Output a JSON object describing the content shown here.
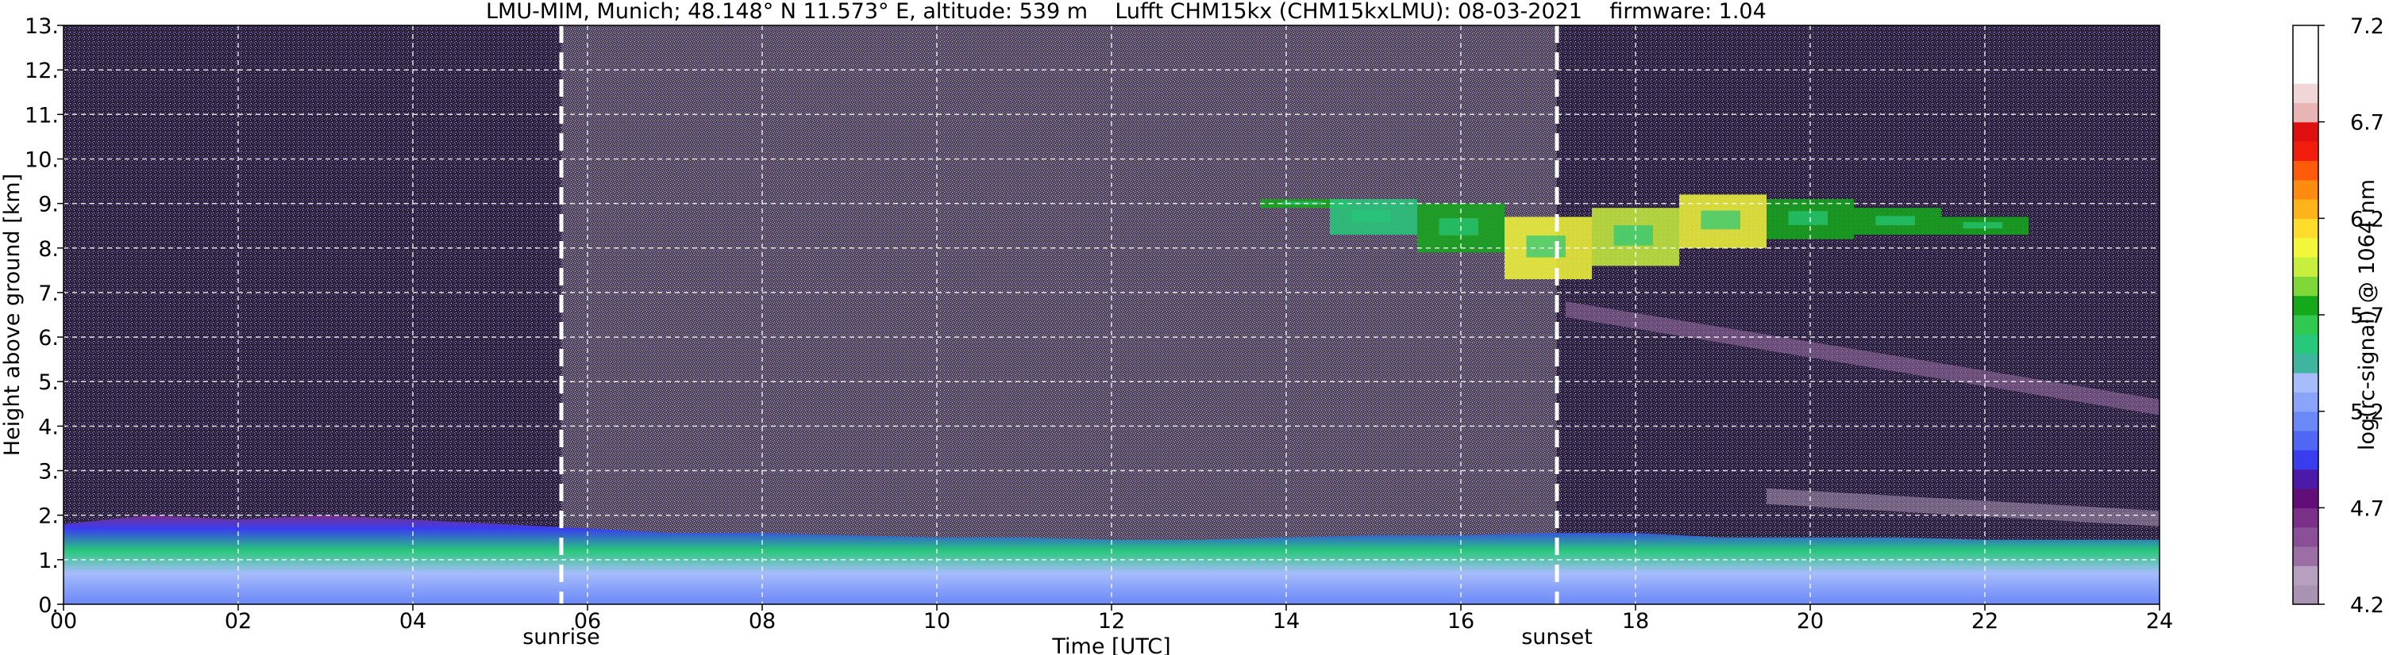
{
  "title": "LMU-MIM, Munich; 48.148° N 11.573° E, altitude: 539 m    Lufft CHM15kx (CHM15kxLMU): 08-03-2021    firmware: 1.04",
  "chart_data": {
    "type": "heatmap",
    "xlabel": "Time [UTC]",
    "ylabel": "Height above ground [km]",
    "xlim": [
      0,
      24
    ],
    "ylim": [
      0,
      13
    ],
    "x_ticks": [
      0,
      2,
      4,
      6,
      8,
      10,
      12,
      14,
      16,
      18,
      20,
      22,
      24
    ],
    "x_tick_labels": [
      "00",
      "02",
      "04",
      "06",
      "08",
      "10",
      "12",
      "14",
      "16",
      "18",
      "20",
      "22",
      "24"
    ],
    "y_ticks": [
      0,
      1,
      2,
      3,
      4,
      5,
      6,
      7,
      8,
      9,
      10,
      11,
      12,
      13
    ],
    "y_tick_labels": [
      "0.",
      "1.",
      "2.",
      "3.",
      "4.",
      "5.",
      "6.",
      "7.",
      "8.",
      "9.",
      "10.",
      "11.",
      "12.",
      "13."
    ],
    "grid": true,
    "annotations": [
      {
        "text": "sunrise",
        "x": 5.7
      },
      {
        "text": "sunset",
        "x": 17.1
      }
    ],
    "colorbar": {
      "label": "log(rc-signal) @ 1064 nm",
      "range": [
        4.2,
        7.2
      ],
      "ticks": [
        4.2,
        4.7,
        5.2,
        5.7,
        6.2,
        6.7,
        7.2
      ],
      "tick_labels": [
        "4.2",
        "4.7",
        "5.2",
        "5.7",
        "6.2",
        "6.7",
        "7.2"
      ],
      "colors": [
        "#a993b3",
        "#b79fbf",
        "#9b6fa6",
        "#8a4f97",
        "#7a2f88",
        "#620d78",
        "#4b1aa8",
        "#3a3cf0",
        "#5066f5",
        "#6a88f8",
        "#8aa4fa",
        "#a6bcfb",
        "#3fb5a0",
        "#27c87a",
        "#2fc850",
        "#16a81b",
        "#7fd838",
        "#c8ef3d",
        "#f2f73a",
        "#ffdc2a",
        "#ffb31a",
        "#ff8c10",
        "#ff5a0a",
        "#f21d0d",
        "#e01010",
        "#e8b4b4",
        "#f0d6d6",
        "#ffffff",
        "#ffffff",
        "#ffffff"
      ]
    },
    "boundary_layer_top_km": [
      {
        "x": 0,
        "y": 1.8
      },
      {
        "x": 1,
        "y": 2.0
      },
      {
        "x": 2,
        "y": 1.9
      },
      {
        "x": 3,
        "y": 2.0
      },
      {
        "x": 4,
        "y": 1.9
      },
      {
        "x": 5,
        "y": 1.8
      },
      {
        "x": 6,
        "y": 1.7
      },
      {
        "x": 7,
        "y": 1.6
      },
      {
        "x": 8,
        "y": 1.6
      },
      {
        "x": 9,
        "y": 1.55
      },
      {
        "x": 10,
        "y": 1.5
      },
      {
        "x": 11,
        "y": 1.5
      },
      {
        "x": 12,
        "y": 1.45
      },
      {
        "x": 13,
        "y": 1.45
      },
      {
        "x": 14,
        "y": 1.5
      },
      {
        "x": 15,
        "y": 1.55
      },
      {
        "x": 16,
        "y": 1.55
      },
      {
        "x": 17,
        "y": 1.6
      },
      {
        "x": 18,
        "y": 1.6
      },
      {
        "x": 19,
        "y": 1.5
      },
      {
        "x": 20,
        "y": 1.5
      },
      {
        "x": 21,
        "y": 1.5
      },
      {
        "x": 22,
        "y": 1.45
      },
      {
        "x": 23,
        "y": 1.45
      },
      {
        "x": 24,
        "y": 1.45
      }
    ],
    "cirrus_layer": [
      {
        "x": 14.2,
        "bottom": 8.9,
        "top": 9.1,
        "value": 5.8
      },
      {
        "x": 15.0,
        "bottom": 8.3,
        "top": 9.1,
        "value": 5.6
      },
      {
        "x": 16.0,
        "bottom": 7.9,
        "top": 9.0,
        "value": 5.7
      },
      {
        "x": 17.0,
        "bottom": 7.3,
        "top": 8.7,
        "value": 6.0
      },
      {
        "x": 18.0,
        "bottom": 7.6,
        "top": 8.9,
        "value": 5.9
      },
      {
        "x": 19.0,
        "bottom": 8.0,
        "top": 9.2,
        "value": 6.0
      },
      {
        "x": 20.0,
        "bottom": 8.2,
        "top": 9.1,
        "value": 5.8
      },
      {
        "x": 21.0,
        "bottom": 8.3,
        "top": 8.9,
        "value": 5.7
      },
      {
        "x": 22.0,
        "bottom": 8.3,
        "top": 8.7,
        "value": 5.8
      }
    ],
    "aerosol_layers": [
      {
        "x0": 17.2,
        "x1": 24,
        "y0": 6.8,
        "y1": 4.6,
        "value": 4.5
      },
      {
        "x0": 19.5,
        "x1": 24,
        "y0": 2.6,
        "y1": 2.1,
        "value": 4.3
      }
    ]
  }
}
